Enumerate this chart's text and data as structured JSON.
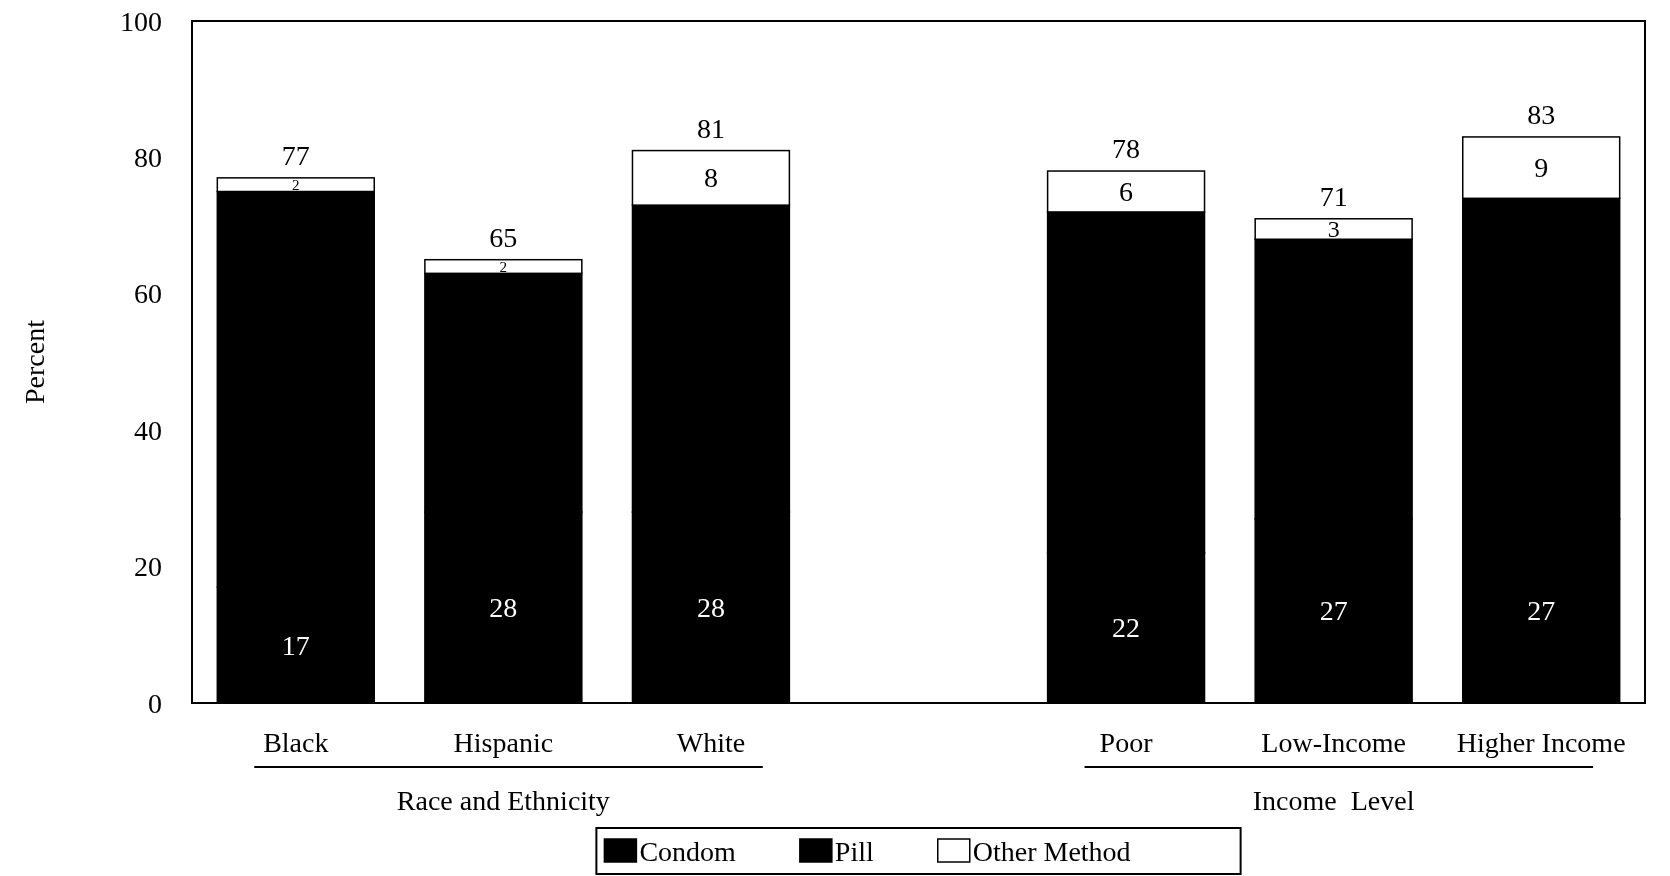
{
  "chart_data": {
    "type": "bar",
    "stacked": true,
    "categories": [
      "Black",
      "Hispanic",
      "White",
      null,
      "Poor",
      "Low-Income",
      "Higher Income"
    ],
    "series": [
      {
        "name": "Condom",
        "color": "#000000",
        "values": [
          17,
          28,
          28,
          null,
          22,
          27,
          27
        ],
        "value_labels": [
          "17",
          "28",
          "28",
          null,
          "22",
          "27",
          "27"
        ]
      },
      {
        "name": "Pill",
        "color": "#000000",
        "values": [
          58,
          35,
          45,
          null,
          50,
          41,
          47
        ]
      },
      {
        "name": "Other Method",
        "color": "#ffffff",
        "values": [
          2,
          2,
          8,
          null,
          6,
          3,
          9
        ],
        "value_labels": [
          "2",
          "2",
          "8",
          null,
          "6",
          "3",
          "9"
        ]
      }
    ],
    "totals": [
      "77",
      "65",
      "81",
      null,
      "78",
      "71",
      "83"
    ],
    "ylim": [
      0,
      100
    ],
    "yticks": [
      0,
      20,
      40,
      60,
      80,
      100
    ],
    "ylabel": "Percent",
    "annotations": [
      "Race and Ethnicity",
      "Income  Level"
    ],
    "legend": "bottom"
  }
}
